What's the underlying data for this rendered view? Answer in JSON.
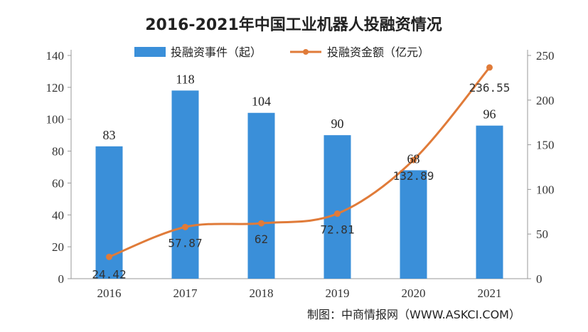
{
  "chart_data": {
    "type": "bar",
    "title": "2016-2021年中国工业机器人投融资情况",
    "categories": [
      "2016",
      "2017",
      "2018",
      "2019",
      "2020",
      "2021"
    ],
    "series": [
      {
        "name": "投融资事件（起）",
        "type": "bar",
        "axis": "left",
        "color": "#3a8fd9",
        "values": [
          83,
          118,
          104,
          90,
          68,
          96
        ],
        "labels": [
          "83",
          "118",
          "104",
          "90",
          "68",
          "96"
        ]
      },
      {
        "name": "投融资金额（亿元）",
        "type": "line",
        "axis": "right",
        "color": "#e07b39",
        "values": [
          24.42,
          57.87,
          62,
          72.81,
          132.89,
          236.55
        ],
        "labels": [
          "24.42",
          "57.87",
          "62",
          "72.81",
          "132.89",
          "236.55"
        ]
      }
    ],
    "yaxis_left": {
      "min": 0,
      "max": 140,
      "ticks": [
        "0",
        "20",
        "40",
        "60",
        "80",
        "100",
        "120",
        "140"
      ]
    },
    "yaxis_right": {
      "min": 0,
      "max": 250,
      "ticks": [
        "0",
        "50",
        "100",
        "150",
        "200",
        "250"
      ]
    },
    "legend_position": "top-center",
    "grid": false
  },
  "source_text": "制图：中商情报网（WWW.ASKCI.COM）"
}
